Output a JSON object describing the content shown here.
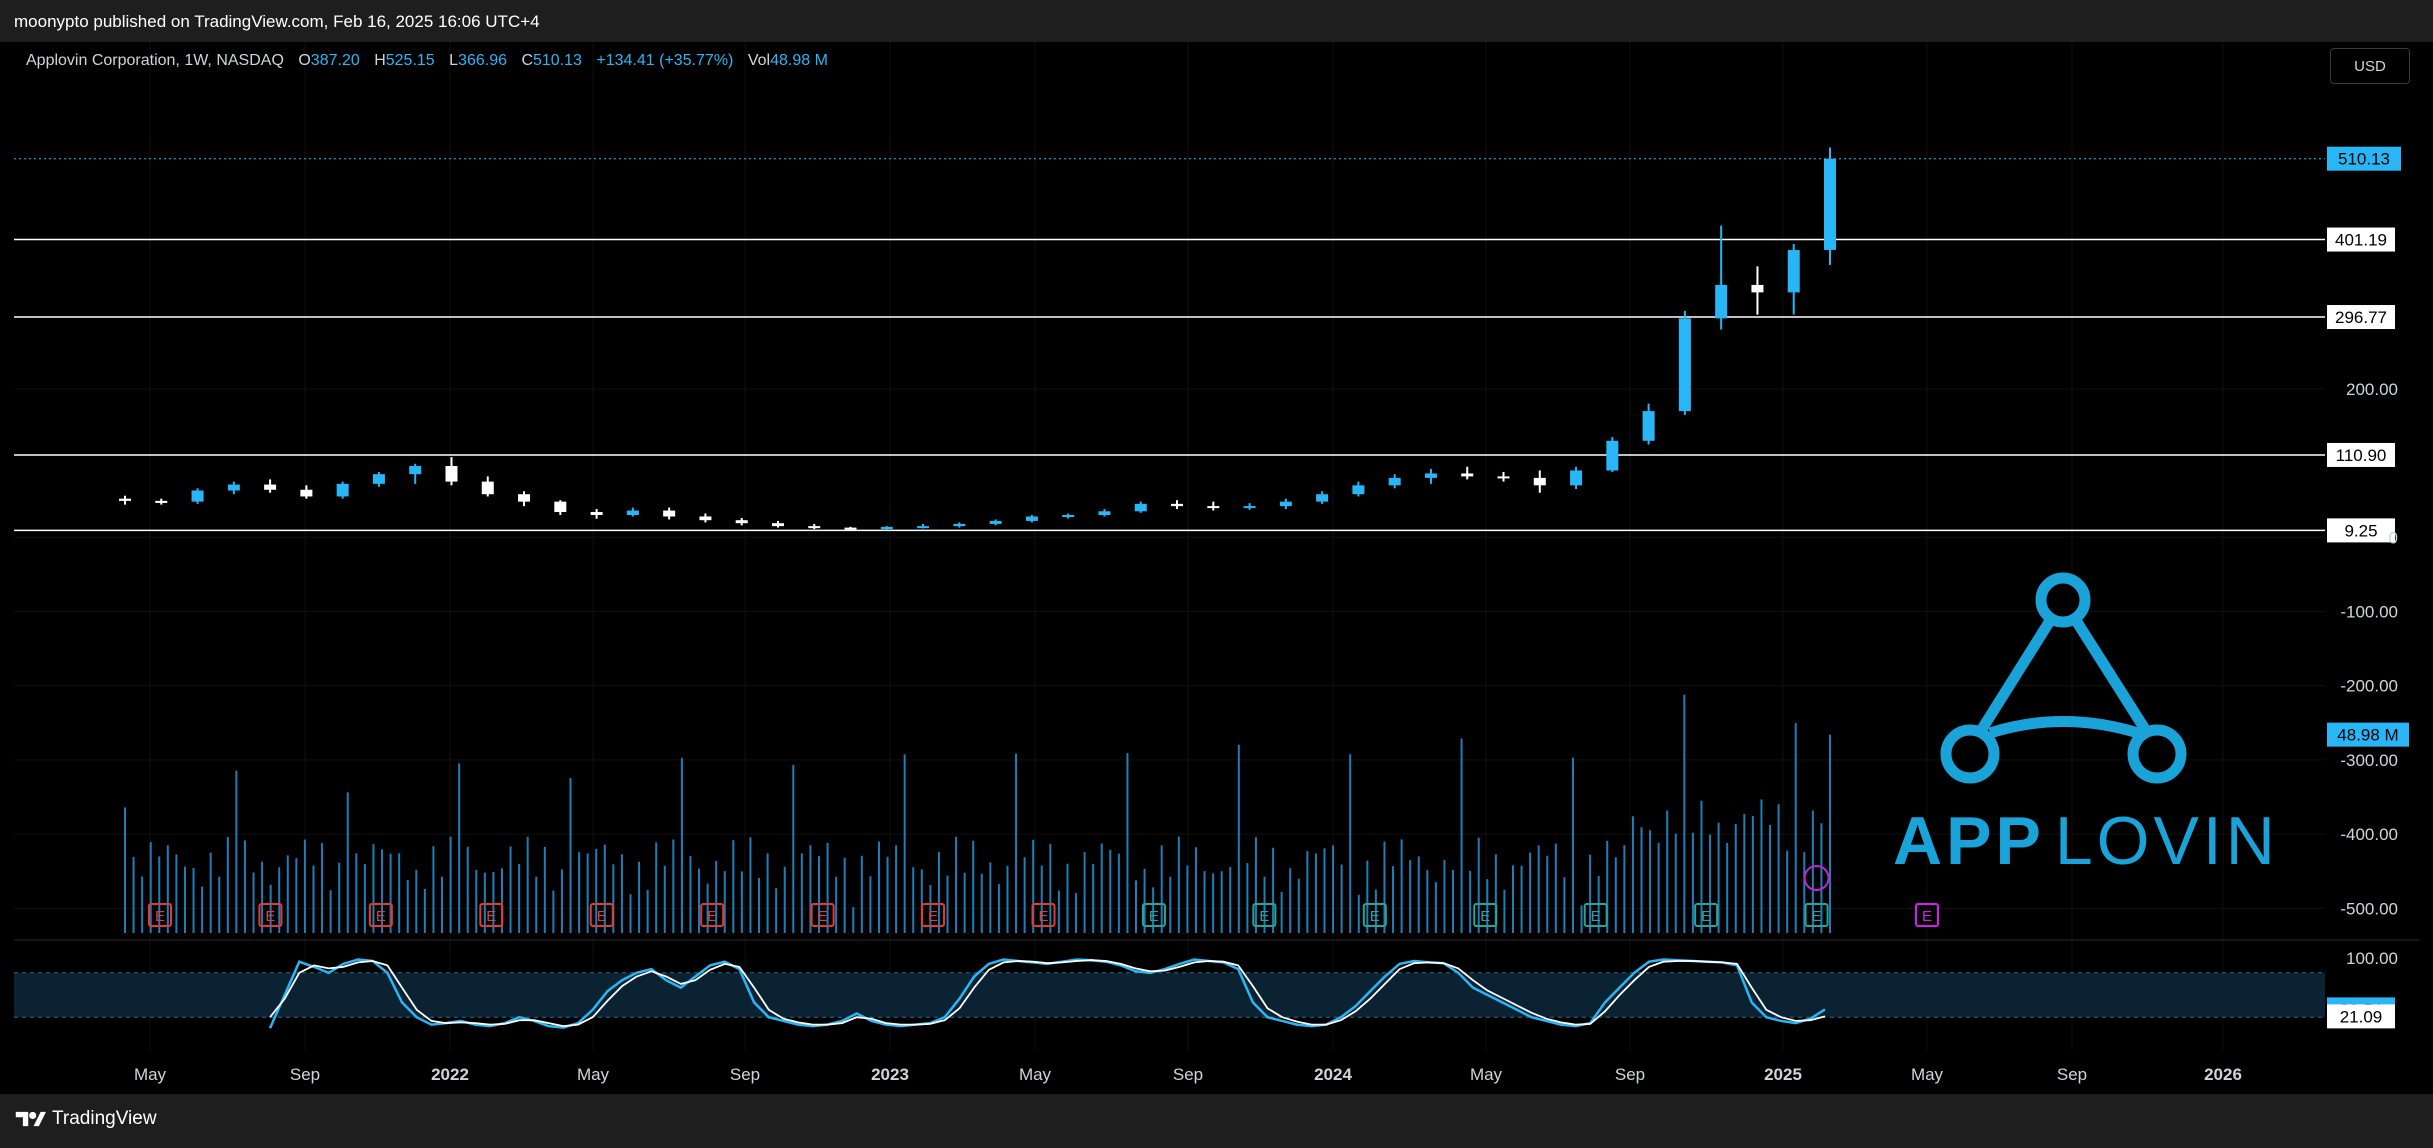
{
  "header": {
    "published": "moonypto published on TradingView.com, Feb 16, 2025 16:06 UTC+4"
  },
  "legend": {
    "title": "Applovin Corporation, 1W, NASDAQ",
    "open_label": "O",
    "open": "387.20",
    "high_label": "H",
    "high": "525.15",
    "low_label": "L",
    "low": "366.96",
    "close_label": "C",
    "close": "510.13",
    "change": "+134.41 (+35.77%)",
    "vol_label": "Vol",
    "vol": "48.98 M"
  },
  "currency_button": "USD",
  "footer": {
    "brand": "TradingView"
  },
  "logo": {
    "text_app": "APP",
    "text_lovin": "LOVIN"
  },
  "colors": {
    "accent": "#29b6f6",
    "up": "#29b6f6",
    "down": "#ffffff",
    "earnings_past": "#e53935",
    "earnings_recent": "#26a69a",
    "earnings_future": "#d81bf0",
    "background": "#000000"
  },
  "chart_data": {
    "type": "candlestick",
    "interval": "1W",
    "price_axis": {
      "ticks": [
        "200.00",
        "0",
        "-100.00",
        "-200.00",
        "-300.00",
        "-400.00",
        "-500.00"
      ],
      "scale_min": -540,
      "scale_max": 600
    },
    "horizontal_lines": [
      {
        "value": 401.19,
        "label": "401.19"
      },
      {
        "value": 296.77,
        "label": "296.77"
      },
      {
        "value": 110.9,
        "label": "110.90"
      },
      {
        "value": 9.25,
        "label": "9.25"
      }
    ],
    "last_price": {
      "value": 510.13,
      "label": "510.13"
    },
    "volume_label": "48.98 M",
    "x_ticks": [
      "May",
      "Sep",
      "2022",
      "May",
      "Sep",
      "2023",
      "May",
      "Sep",
      "2024",
      "May",
      "Sep",
      "2025",
      "May",
      "Sep",
      "2026"
    ],
    "candles": [
      {
        "d": "2021-04",
        "o": 52,
        "h": 56,
        "l": 44,
        "c": 49
      },
      {
        "d": "2021-05",
        "o": 49,
        "h": 52,
        "l": 44,
        "c": 47
      },
      {
        "d": "2021-06",
        "o": 48,
        "h": 66,
        "l": 45,
        "c": 63
      },
      {
        "d": "2021-07",
        "o": 63,
        "h": 75,
        "l": 58,
        "c": 71
      },
      {
        "d": "2021-08",
        "o": 71,
        "h": 78,
        "l": 60,
        "c": 64
      },
      {
        "d": "2021-09",
        "o": 64,
        "h": 70,
        "l": 52,
        "c": 55
      },
      {
        "d": "2021-10",
        "o": 55,
        "h": 75,
        "l": 52,
        "c": 72
      },
      {
        "d": "2021-11",
        "o": 72,
        "h": 88,
        "l": 68,
        "c": 85
      },
      {
        "d": "2021-12",
        "o": 85,
        "h": 99,
        "l": 72,
        "c": 96
      },
      {
        "d": "2022-01",
        "o": 96,
        "h": 108,
        "l": 70,
        "c": 75
      },
      {
        "d": "2022-02",
        "o": 75,
        "h": 82,
        "l": 55,
        "c": 58
      },
      {
        "d": "2022-03",
        "o": 58,
        "h": 62,
        "l": 42,
        "c": 48
      },
      {
        "d": "2022-04",
        "o": 48,
        "h": 50,
        "l": 30,
        "c": 34
      },
      {
        "d": "2022-05",
        "o": 34,
        "h": 38,
        "l": 25,
        "c": 30
      },
      {
        "d": "2022-06",
        "o": 30,
        "h": 40,
        "l": 28,
        "c": 36
      },
      {
        "d": "2022-07",
        "o": 36,
        "h": 40,
        "l": 24,
        "c": 28
      },
      {
        "d": "2022-08",
        "o": 28,
        "h": 32,
        "l": 20,
        "c": 23
      },
      {
        "d": "2022-09",
        "o": 23,
        "h": 26,
        "l": 16,
        "c": 19
      },
      {
        "d": "2022-10",
        "o": 19,
        "h": 22,
        "l": 13,
        "c": 15
      },
      {
        "d": "2022-11",
        "o": 15,
        "h": 18,
        "l": 11,
        "c": 13
      },
      {
        "d": "2022-12",
        "o": 13,
        "h": 14,
        "l": 9.25,
        "c": 11
      },
      {
        "d": "2023-01",
        "o": 11,
        "h": 15,
        "l": 10,
        "c": 14
      },
      {
        "d": "2023-02",
        "o": 14,
        "h": 18,
        "l": 12,
        "c": 15
      },
      {
        "d": "2023-03",
        "o": 15,
        "h": 20,
        "l": 13,
        "c": 18
      },
      {
        "d": "2023-04",
        "o": 18,
        "h": 24,
        "l": 16,
        "c": 22
      },
      {
        "d": "2023-05",
        "o": 22,
        "h": 30,
        "l": 20,
        "c": 28
      },
      {
        "d": "2023-06",
        "o": 28,
        "h": 32,
        "l": 25,
        "c": 30
      },
      {
        "d": "2023-07",
        "o": 30,
        "h": 38,
        "l": 28,
        "c": 35
      },
      {
        "d": "2023-08",
        "o": 35,
        "h": 48,
        "l": 33,
        "c": 45
      },
      {
        "d": "2023-09",
        "o": 45,
        "h": 50,
        "l": 38,
        "c": 42
      },
      {
        "d": "2023-10",
        "o": 42,
        "h": 48,
        "l": 36,
        "c": 40
      },
      {
        "d": "2023-11",
        "o": 40,
        "h": 46,
        "l": 37,
        "c": 42
      },
      {
        "d": "2023-12",
        "o": 42,
        "h": 52,
        "l": 38,
        "c": 48
      },
      {
        "d": "2024-01",
        "o": 48,
        "h": 62,
        "l": 45,
        "c": 58
      },
      {
        "d": "2024-02",
        "o": 58,
        "h": 75,
        "l": 55,
        "c": 70
      },
      {
        "d": "2024-03",
        "o": 70,
        "h": 85,
        "l": 66,
        "c": 80
      },
      {
        "d": "2024-04",
        "o": 80,
        "h": 92,
        "l": 72,
        "c": 86
      },
      {
        "d": "2024-05",
        "o": 86,
        "h": 95,
        "l": 78,
        "c": 82
      },
      {
        "d": "2024-06",
        "o": 82,
        "h": 88,
        "l": 75,
        "c": 80
      },
      {
        "d": "2024-07",
        "o": 80,
        "h": 90,
        "l": 60,
        "c": 70
      },
      {
        "d": "2024-08",
        "o": 70,
        "h": 95,
        "l": 65,
        "c": 90
      },
      {
        "d": "2024-09",
        "o": 90,
        "h": 135,
        "l": 88,
        "c": 130
      },
      {
        "d": "2024-10",
        "o": 130,
        "h": 180,
        "l": 125,
        "c": 170
      },
      {
        "d": "2024-11a",
        "o": 170,
        "h": 305,
        "l": 165,
        "c": 295
      },
      {
        "d": "2024-11b",
        "o": 295,
        "h": 420,
        "l": 280,
        "c": 340
      },
      {
        "d": "2024-12",
        "o": 340,
        "h": 365,
        "l": 300,
        "c": 330
      },
      {
        "d": "2025-01",
        "o": 330,
        "h": 395,
        "l": 300,
        "c": 387
      },
      {
        "d": "2025-02",
        "o": 387.2,
        "h": 525.15,
        "l": 366.96,
        "c": 510.13
      }
    ],
    "volume_range_M": [
      0,
      60
    ],
    "earnings": [
      {
        "x": "2021-05",
        "label": "E",
        "status": "past"
      },
      {
        "x": "2021-08",
        "label": "E",
        "status": "past"
      },
      {
        "x": "2021-11",
        "label": "E",
        "status": "past"
      },
      {
        "x": "2022-02",
        "label": "E",
        "status": "past"
      },
      {
        "x": "2022-05",
        "label": "E",
        "status": "past"
      },
      {
        "x": "2022-08",
        "label": "E",
        "status": "past"
      },
      {
        "x": "2022-11",
        "label": "E",
        "status": "past"
      },
      {
        "x": "2023-02",
        "label": "E",
        "status": "past"
      },
      {
        "x": "2023-05",
        "label": "E",
        "status": "past"
      },
      {
        "x": "2023-08",
        "label": "E",
        "status": "recent"
      },
      {
        "x": "2023-11",
        "label": "E",
        "status": "recent"
      },
      {
        "x": "2024-02",
        "label": "E",
        "status": "recent"
      },
      {
        "x": "2024-05",
        "label": "E",
        "status": "recent"
      },
      {
        "x": "2024-08",
        "label": "E",
        "status": "recent"
      },
      {
        "x": "2024-11",
        "label": "E",
        "status": "recent"
      },
      {
        "x": "2025-02",
        "label": "E",
        "status": "recent"
      },
      {
        "x": "2025-05",
        "label": "E",
        "status": "future"
      }
    ],
    "oscillator": {
      "ticks": [
        "100.00"
      ],
      "labels": [
        {
          "value": 30.54,
          "label": "30.54",
          "color": "#29b6f6"
        },
        {
          "value": 21.09,
          "label": "21.09",
          "color": "#ffffff"
        }
      ],
      "band": [
        20,
        80
      ],
      "k": [
        5,
        50,
        95,
        88,
        80,
        92,
        98,
        96,
        80,
        40,
        20,
        10,
        12,
        15,
        10,
        8,
        12,
        20,
        15,
        8,
        6,
        12,
        30,
        55,
        70,
        80,
        85,
        70,
        60,
        75,
        90,
        95,
        85,
        40,
        20,
        15,
        10,
        8,
        10,
        15,
        25,
        15,
        10,
        8,
        10,
        12,
        20,
        45,
        75,
        92,
        98,
        96,
        94,
        92,
        95,
        98,
        97,
        95,
        90,
        82,
        80,
        85,
        92,
        98,
        96,
        94,
        85,
        40,
        20,
        15,
        10,
        8,
        10,
        20,
        35,
        55,
        75,
        92,
        96,
        94,
        93,
        80,
        60,
        50,
        40,
        30,
        20,
        15,
        10,
        8,
        12,
        40,
        60,
        80,
        95,
        98,
        97,
        96,
        95,
        94,
        90,
        40,
        20,
        15,
        12,
        18,
        30.54
      ],
      "d": [
        20,
        45,
        80,
        90,
        86,
        88,
        94,
        96,
        90,
        60,
        30,
        15,
        12,
        13,
        12,
        10,
        11,
        16,
        16,
        12,
        8,
        10,
        20,
        42,
        62,
        75,
        82,
        75,
        65,
        70,
        84,
        92,
        88,
        60,
        30,
        18,
        13,
        10,
        10,
        12,
        20,
        18,
        12,
        10,
        10,
        11,
        16,
        32,
        60,
        84,
        94,
        96,
        95,
        93,
        94,
        96,
        97,
        96,
        92,
        86,
        82,
        83,
        88,
        94,
        96,
        95,
        90,
        62,
        32,
        20,
        14,
        10,
        10,
        16,
        28,
        45,
        65,
        85,
        93,
        94,
        93,
        86,
        70,
        56,
        46,
        36,
        26,
        18,
        13,
        10,
        11,
        28,
        50,
        70,
        88,
        95,
        96,
        96,
        95,
        94,
        92,
        60,
        30,
        20,
        15,
        16,
        21.09
      ]
    }
  }
}
